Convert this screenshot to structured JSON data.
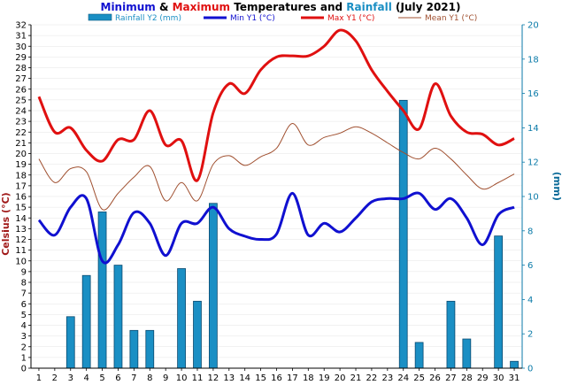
{
  "chart_data": {
    "type": "bar+line",
    "title_parts": [
      {
        "text": "Minimum",
        "color": "#1010d0"
      },
      {
        "text": " & ",
        "color": "#000000"
      },
      {
        "text": "Maximum",
        "color": "#e01010"
      },
      {
        "text": " Temperatures and ",
        "color": "#000000"
      },
      {
        "text": "Rainfall",
        "color": "#1a8fc4"
      },
      {
        "text": " (July 2021)",
        "color": "#000000"
      }
    ],
    "ylabel_left": "Celsius (°C)",
    "ylabel_right": "(mm)",
    "ylim_left": [
      0,
      32
    ],
    "ylim_right": [
      0,
      20
    ],
    "x": [
      1,
      2,
      3,
      4,
      5,
      6,
      7,
      8,
      9,
      10,
      11,
      12,
      13,
      14,
      15,
      16,
      17,
      18,
      19,
      20,
      21,
      22,
      23,
      24,
      25,
      26,
      27,
      28,
      29,
      30,
      31
    ],
    "legend": [
      {
        "label": "Rainfall Y2 (mm)",
        "color": "#1a8fc4",
        "kind": "bar"
      },
      {
        "label": "Min Y1 (°C)",
        "color": "#1010d0",
        "kind": "line"
      },
      {
        "label": "Max Y1 (°C)",
        "color": "#e01010",
        "kind": "line"
      },
      {
        "label": "Mean Y1 (°C)",
        "color": "#a05030",
        "kind": "line"
      }
    ],
    "series": [
      {
        "name": "Rainfall Y2 (mm)",
        "axis": "right",
        "color": "#1a8fc4",
        "values": [
          0,
          0,
          3.0,
          5.4,
          9.1,
          6.0,
          2.2,
          2.2,
          0,
          5.8,
          3.9,
          9.6,
          0,
          0,
          0,
          0,
          0,
          0,
          0,
          0,
          0,
          0,
          0,
          15.6,
          1.5,
          0,
          3.9,
          1.7,
          0,
          7.7,
          0.4
        ]
      },
      {
        "name": "Min Y1 (°C)",
        "axis": "left",
        "color": "#1010d0",
        "values": [
          13.8,
          12.4,
          15.0,
          15.8,
          10.0,
          11.5,
          14.5,
          13.5,
          10.5,
          13.5,
          13.5,
          15.0,
          13.0,
          12.3,
          12.0,
          12.5,
          16.3,
          12.4,
          13.5,
          12.7,
          14.0,
          15.5,
          15.8,
          15.8,
          16.3,
          14.8,
          15.8,
          14.0,
          11.5,
          14.3,
          15.0
        ]
      },
      {
        "name": "Max Y1 (°C)",
        "axis": "left",
        "color": "#e01010",
        "values": [
          25.3,
          22.0,
          22.4,
          20.3,
          19.3,
          21.3,
          21.3,
          24.0,
          20.8,
          21.2,
          17.5,
          23.8,
          26.5,
          25.6,
          27.8,
          29.0,
          29.1,
          29.1,
          30.0,
          31.5,
          30.5,
          27.8,
          25.8,
          24.0,
          22.3,
          26.5,
          23.5,
          22.0,
          21.8,
          20.8,
          21.4
        ]
      },
      {
        "name": "Mean Y1 (°C)",
        "axis": "left",
        "color": "#a05030",
        "values": [
          19.5,
          17.3,
          18.6,
          18.3,
          14.8,
          16.3,
          17.8,
          18.8,
          15.6,
          17.3,
          15.6,
          19.0,
          19.8,
          18.9,
          19.7,
          20.5,
          22.8,
          20.8,
          21.5,
          21.9,
          22.5,
          21.9,
          21.0,
          20.1,
          19.5,
          20.5,
          19.5,
          18.0,
          16.7,
          17.3,
          18.1
        ]
      }
    ]
  }
}
